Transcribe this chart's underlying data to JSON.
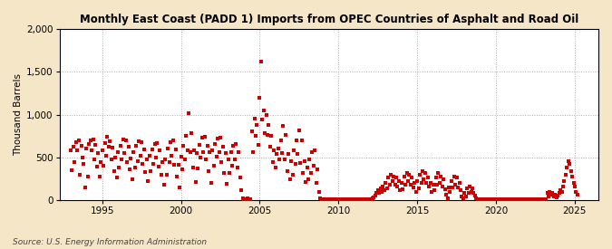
{
  "title": "Monthly East Coast (PADD 1) Imports from OPEC Countries of Asphalt and Road Oil",
  "ylabel": "Thousand Barrels",
  "source": "Source: U.S. Energy Information Administration",
  "fig_bg_color": "#f5e6c8",
  "plot_bg_color": "#ffffff",
  "marker_color": "#cc0000",
  "marker_size": 7,
  "ylim": [
    0,
    2000
  ],
  "yticks": [
    0,
    500,
    1000,
    1500,
    2000
  ],
  "ytick_labels": [
    "0",
    "500",
    "1,000",
    "1,500",
    "2,000"
  ],
  "xlim_start": 1992.3,
  "xlim_end": 2026.5,
  "xticks": [
    1995,
    2000,
    2005,
    2010,
    2015,
    2020,
    2025
  ],
  "data_points": [
    [
      1993.0,
      580
    ],
    [
      1993.08,
      350
    ],
    [
      1993.17,
      620
    ],
    [
      1993.25,
      450
    ],
    [
      1993.33,
      680
    ],
    [
      1993.42,
      580
    ],
    [
      1993.5,
      700
    ],
    [
      1993.58,
      300
    ],
    [
      1993.67,
      640
    ],
    [
      1993.75,
      500
    ],
    [
      1993.83,
      420
    ],
    [
      1993.92,
      150
    ],
    [
      1994.0,
      600
    ],
    [
      1994.08,
      280
    ],
    [
      1994.17,
      660
    ],
    [
      1994.25,
      700
    ],
    [
      1994.33,
      580
    ],
    [
      1994.42,
      710
    ],
    [
      1994.5,
      480
    ],
    [
      1994.58,
      650
    ],
    [
      1994.67,
      390
    ],
    [
      1994.75,
      550
    ],
    [
      1994.83,
      280
    ],
    [
      1994.92,
      450
    ],
    [
      1995.0,
      580
    ],
    [
      1995.08,
      400
    ],
    [
      1995.17,
      670
    ],
    [
      1995.25,
      520
    ],
    [
      1995.33,
      740
    ],
    [
      1995.42,
      620
    ],
    [
      1995.5,
      690
    ],
    [
      1995.58,
      480
    ],
    [
      1995.67,
      610
    ],
    [
      1995.75,
      340
    ],
    [
      1995.83,
      500
    ],
    [
      1995.92,
      260
    ],
    [
      1996.0,
      560
    ],
    [
      1996.08,
      380
    ],
    [
      1996.17,
      640
    ],
    [
      1996.25,
      480
    ],
    [
      1996.33,
      710
    ],
    [
      1996.42,
      550
    ],
    [
      1996.5,
      700
    ],
    [
      1996.58,
      450
    ],
    [
      1996.67,
      620
    ],
    [
      1996.75,
      360
    ],
    [
      1996.83,
      490
    ],
    [
      1996.92,
      240
    ],
    [
      1997.0,
      560
    ],
    [
      1997.08,
      380
    ],
    [
      1997.17,
      630
    ],
    [
      1997.25,
      460
    ],
    [
      1997.33,
      690
    ],
    [
      1997.42,
      520
    ],
    [
      1997.5,
      680
    ],
    [
      1997.58,
      420
    ],
    [
      1997.67,
      590
    ],
    [
      1997.75,
      330
    ],
    [
      1997.83,
      480
    ],
    [
      1997.92,
      220
    ],
    [
      1998.0,
      520
    ],
    [
      1998.08,
      340
    ],
    [
      1998.17,
      590
    ],
    [
      1998.25,
      420
    ],
    [
      1998.33,
      660
    ],
    [
      1998.42,
      500
    ],
    [
      1998.5,
      670
    ],
    [
      1998.58,
      390
    ],
    [
      1998.67,
      580
    ],
    [
      1998.75,
      300
    ],
    [
      1998.83,
      440
    ],
    [
      1998.92,
      180
    ],
    [
      1999.0,
      480
    ],
    [
      1999.08,
      300
    ],
    [
      1999.17,
      600
    ],
    [
      1999.25,
      450
    ],
    [
      1999.33,
      680
    ],
    [
      1999.42,
      520
    ],
    [
      1999.5,
      700
    ],
    [
      1999.58,
      410
    ],
    [
      1999.67,
      590
    ],
    [
      1999.75,
      280
    ],
    [
      1999.83,
      410
    ],
    [
      1999.92,
      150
    ],
    [
      2000.0,
      510
    ],
    [
      2000.08,
      360
    ],
    [
      2000.17,
      630
    ],
    [
      2000.25,
      480
    ],
    [
      2000.33,
      750
    ],
    [
      2000.42,
      580
    ],
    [
      2000.5,
      1020
    ],
    [
      2000.58,
      560
    ],
    [
      2000.67,
      780
    ],
    [
      2000.75,
      380
    ],
    [
      2000.83,
      580
    ],
    [
      2000.92,
      210
    ],
    [
      2001.0,
      550
    ],
    [
      2001.08,
      370
    ],
    [
      2001.17,
      650
    ],
    [
      2001.25,
      500
    ],
    [
      2001.33,
      730
    ],
    [
      2001.42,
      560
    ],
    [
      2001.5,
      740
    ],
    [
      2001.58,
      480
    ],
    [
      2001.67,
      640
    ],
    [
      2001.75,
      340
    ],
    [
      2001.83,
      560
    ],
    [
      2001.92,
      200
    ],
    [
      2002.0,
      580
    ],
    [
      2002.08,
      400
    ],
    [
      2002.17,
      660
    ],
    [
      2002.25,
      510
    ],
    [
      2002.33,
      720
    ],
    [
      2002.42,
      560
    ],
    [
      2002.5,
      730
    ],
    [
      2002.58,
      450
    ],
    [
      2002.67,
      620
    ],
    [
      2002.75,
      320
    ],
    [
      2002.83,
      550
    ],
    [
      2002.92,
      190
    ],
    [
      2003.0,
      480
    ],
    [
      2003.08,
      320
    ],
    [
      2003.17,
      560
    ],
    [
      2003.25,
      400
    ],
    [
      2003.33,
      640
    ],
    [
      2003.42,
      480
    ],
    [
      2003.5,
      660
    ],
    [
      2003.58,
      380
    ],
    [
      2003.67,
      560
    ],
    [
      2003.75,
      260
    ],
    [
      2003.83,
      120
    ],
    [
      2003.92,
      20
    ],
    [
      2004.0,
      15
    ],
    [
      2004.08,
      10
    ],
    [
      2004.17,
      15
    ],
    [
      2004.25,
      20
    ],
    [
      2004.33,
      15
    ],
    [
      2004.42,
      10
    ],
    [
      2004.5,
      800
    ],
    [
      2004.58,
      560
    ],
    [
      2004.67,
      950
    ],
    [
      2004.75,
      750
    ],
    [
      2004.83,
      880
    ],
    [
      2004.92,
      650
    ],
    [
      2005.0,
      1200
    ],
    [
      2005.08,
      1620
    ],
    [
      2005.17,
      940
    ],
    [
      2005.25,
      1050
    ],
    [
      2005.33,
      780
    ],
    [
      2005.42,
      1000
    ],
    [
      2005.5,
      760
    ],
    [
      2005.58,
      880
    ],
    [
      2005.67,
      620
    ],
    [
      2005.75,
      750
    ],
    [
      2005.83,
      440
    ],
    [
      2005.92,
      580
    ],
    [
      2006.0,
      380
    ],
    [
      2006.08,
      540
    ],
    [
      2006.17,
      600
    ],
    [
      2006.25,
      480
    ],
    [
      2006.33,
      700
    ],
    [
      2006.42,
      550
    ],
    [
      2006.5,
      870
    ],
    [
      2006.58,
      480
    ],
    [
      2006.67,
      760
    ],
    [
      2006.75,
      340
    ],
    [
      2006.83,
      540
    ],
    [
      2006.92,
      240
    ],
    [
      2007.0,
      460
    ],
    [
      2007.08,
      300
    ],
    [
      2007.17,
      580
    ],
    [
      2007.25,
      420
    ],
    [
      2007.33,
      700
    ],
    [
      2007.42,
      540
    ],
    [
      2007.5,
      810
    ],
    [
      2007.58,
      430
    ],
    [
      2007.67,
      700
    ],
    [
      2007.75,
      320
    ],
    [
      2007.83,
      460
    ],
    [
      2007.92,
      210
    ],
    [
      2008.0,
      380
    ],
    [
      2008.08,
      240
    ],
    [
      2008.17,
      480
    ],
    [
      2008.25,
      320
    ],
    [
      2008.33,
      560
    ],
    [
      2008.42,
      400
    ],
    [
      2008.5,
      580
    ],
    [
      2008.58,
      200
    ],
    [
      2008.67,
      360
    ],
    [
      2008.75,
      100
    ],
    [
      2008.83,
      20
    ],
    [
      2008.92,
      10
    ],
    [
      2009.0,
      15
    ],
    [
      2009.08,
      10
    ],
    [
      2009.17,
      15
    ],
    [
      2009.25,
      10
    ],
    [
      2009.33,
      12
    ],
    [
      2009.42,
      15
    ],
    [
      2009.5,
      10
    ],
    [
      2009.58,
      12
    ],
    [
      2009.67,
      10
    ],
    [
      2009.75,
      8
    ],
    [
      2009.83,
      10
    ],
    [
      2009.92,
      8
    ],
    [
      2010.0,
      10
    ],
    [
      2010.08,
      8
    ],
    [
      2010.17,
      12
    ],
    [
      2010.25,
      10
    ],
    [
      2010.33,
      15
    ],
    [
      2010.42,
      12
    ],
    [
      2010.5,
      10
    ],
    [
      2010.58,
      8
    ],
    [
      2010.67,
      10
    ],
    [
      2010.75,
      8
    ],
    [
      2010.83,
      10
    ],
    [
      2010.92,
      8
    ],
    [
      2011.0,
      10
    ],
    [
      2011.08,
      8
    ],
    [
      2011.17,
      10
    ],
    [
      2011.25,
      12
    ],
    [
      2011.33,
      10
    ],
    [
      2011.42,
      8
    ],
    [
      2011.5,
      12
    ],
    [
      2011.58,
      10
    ],
    [
      2011.67,
      8
    ],
    [
      2011.75,
      10
    ],
    [
      2011.83,
      8
    ],
    [
      2011.92,
      10
    ],
    [
      2012.0,
      10
    ],
    [
      2012.08,
      12
    ],
    [
      2012.17,
      20
    ],
    [
      2012.25,
      30
    ],
    [
      2012.33,
      50
    ],
    [
      2012.42,
      80
    ],
    [
      2012.5,
      120
    ],
    [
      2012.58,
      80
    ],
    [
      2012.67,
      140
    ],
    [
      2012.75,
      100
    ],
    [
      2012.83,
      160
    ],
    [
      2012.92,
      120
    ],
    [
      2013.0,
      200
    ],
    [
      2013.08,
      140
    ],
    [
      2013.17,
      260
    ],
    [
      2013.25,
      180
    ],
    [
      2013.33,
      300
    ],
    [
      2013.42,
      220
    ],
    [
      2013.5,
      280
    ],
    [
      2013.58,
      180
    ],
    [
      2013.67,
      260
    ],
    [
      2013.75,
      160
    ],
    [
      2013.83,
      220
    ],
    [
      2013.92,
      120
    ],
    [
      2014.0,
      200
    ],
    [
      2014.08,
      130
    ],
    [
      2014.17,
      280
    ],
    [
      2014.25,
      180
    ],
    [
      2014.33,
      320
    ],
    [
      2014.42,
      220
    ],
    [
      2014.5,
      300
    ],
    [
      2014.58,
      180
    ],
    [
      2014.67,
      260
    ],
    [
      2014.75,
      150
    ],
    [
      2014.83,
      200
    ],
    [
      2014.92,
      100
    ],
    [
      2015.0,
      220
    ],
    [
      2015.08,
      140
    ],
    [
      2015.17,
      300
    ],
    [
      2015.25,
      200
    ],
    [
      2015.33,
      340
    ],
    [
      2015.42,
      240
    ],
    [
      2015.5,
      320
    ],
    [
      2015.58,
      200
    ],
    [
      2015.67,
      260
    ],
    [
      2015.75,
      160
    ],
    [
      2015.83,
      200
    ],
    [
      2015.92,
      100
    ],
    [
      2016.0,
      180
    ],
    [
      2016.08,
      120
    ],
    [
      2016.17,
      260
    ],
    [
      2016.25,
      180
    ],
    [
      2016.33,
      320
    ],
    [
      2016.42,
      200
    ],
    [
      2016.5,
      280
    ],
    [
      2016.58,
      160
    ],
    [
      2016.67,
      240
    ],
    [
      2016.75,
      130
    ],
    [
      2016.83,
      60
    ],
    [
      2016.92,
      20
    ],
    [
      2017.0,
      150
    ],
    [
      2017.08,
      100
    ],
    [
      2017.17,
      220
    ],
    [
      2017.25,
      150
    ],
    [
      2017.33,
      280
    ],
    [
      2017.42,
      180
    ],
    [
      2017.5,
      260
    ],
    [
      2017.58,
      150
    ],
    [
      2017.67,
      200
    ],
    [
      2017.75,
      120
    ],
    [
      2017.83,
      40
    ],
    [
      2017.92,
      20
    ],
    [
      2018.0,
      80
    ],
    [
      2018.08,
      40
    ],
    [
      2018.17,
      140
    ],
    [
      2018.25,
      80
    ],
    [
      2018.33,
      160
    ],
    [
      2018.42,
      100
    ],
    [
      2018.5,
      140
    ],
    [
      2018.58,
      80
    ],
    [
      2018.67,
      50
    ],
    [
      2018.75,
      20
    ],
    [
      2018.83,
      10
    ],
    [
      2018.92,
      8
    ],
    [
      2019.0,
      12
    ],
    [
      2019.08,
      8
    ],
    [
      2019.17,
      10
    ],
    [
      2019.25,
      8
    ],
    [
      2019.33,
      10
    ],
    [
      2019.42,
      8
    ],
    [
      2019.5,
      10
    ],
    [
      2019.58,
      8
    ],
    [
      2019.67,
      6
    ],
    [
      2019.75,
      8
    ],
    [
      2019.83,
      6
    ],
    [
      2019.92,
      8
    ],
    [
      2020.0,
      6
    ],
    [
      2020.08,
      8
    ],
    [
      2020.17,
      6
    ],
    [
      2020.25,
      8
    ],
    [
      2020.33,
      6
    ],
    [
      2020.42,
      8
    ],
    [
      2020.5,
      6
    ],
    [
      2020.58,
      8
    ],
    [
      2020.67,
      6
    ],
    [
      2020.75,
      8
    ],
    [
      2020.83,
      6
    ],
    [
      2020.92,
      8
    ],
    [
      2021.0,
      6
    ],
    [
      2021.08,
      8
    ],
    [
      2021.17,
      6
    ],
    [
      2021.25,
      8
    ],
    [
      2021.33,
      6
    ],
    [
      2021.42,
      8
    ],
    [
      2021.5,
      6
    ],
    [
      2021.58,
      8
    ],
    [
      2021.67,
      6
    ],
    [
      2021.75,
      8
    ],
    [
      2021.83,
      6
    ],
    [
      2021.92,
      8
    ],
    [
      2022.0,
      6
    ],
    [
      2022.08,
      8
    ],
    [
      2022.17,
      6
    ],
    [
      2022.25,
      8
    ],
    [
      2022.33,
      6
    ],
    [
      2022.42,
      8
    ],
    [
      2022.5,
      6
    ],
    [
      2022.58,
      8
    ],
    [
      2022.67,
      6
    ],
    [
      2022.75,
      8
    ],
    [
      2022.83,
      6
    ],
    [
      2022.92,
      8
    ],
    [
      2023.0,
      6
    ],
    [
      2023.08,
      8
    ],
    [
      2023.17,
      6
    ],
    [
      2023.25,
      80
    ],
    [
      2023.33,
      40
    ],
    [
      2023.42,
      100
    ],
    [
      2023.5,
      60
    ],
    [
      2023.58,
      80
    ],
    [
      2023.67,
      40
    ],
    [
      2023.75,
      60
    ],
    [
      2023.83,
      30
    ],
    [
      2023.92,
      50
    ],
    [
      2024.0,
      80
    ],
    [
      2024.08,
      120
    ],
    [
      2024.17,
      100
    ],
    [
      2024.25,
      160
    ],
    [
      2024.33,
      220
    ],
    [
      2024.42,
      300
    ],
    [
      2024.5,
      380
    ],
    [
      2024.58,
      460
    ],
    [
      2024.67,
      420
    ],
    [
      2024.75,
      340
    ],
    [
      2024.83,
      280
    ],
    [
      2024.92,
      200
    ],
    [
      2025.0,
      160
    ],
    [
      2025.08,
      100
    ],
    [
      2025.17,
      60
    ]
  ]
}
